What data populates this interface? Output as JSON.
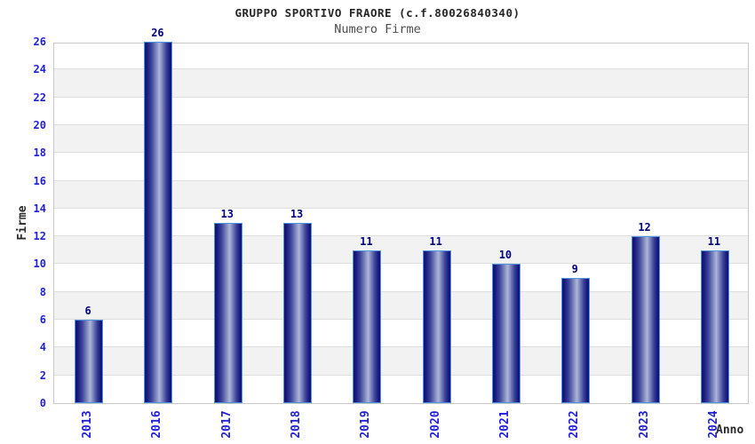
{
  "chart_data": {
    "type": "bar",
    "title": "GRUPPO SPORTIVO FRAORE (c.f.80026840340)",
    "subtitle": "Numero Firme",
    "xlabel": "Anno",
    "ylabel": "Firme",
    "categories": [
      "2013",
      "2016",
      "2017",
      "2018",
      "2019",
      "2020",
      "2021",
      "2022",
      "2023",
      "2024"
    ],
    "values": [
      6,
      26,
      13,
      13,
      11,
      11,
      10,
      9,
      12,
      11
    ],
    "ylim": [
      0,
      26
    ],
    "ytick_step": 2,
    "grid": "horizontal",
    "banded_background": true,
    "legend": "none",
    "bar_value_labels": [
      6,
      26,
      13,
      13,
      11,
      11,
      10,
      9,
      12,
      11
    ]
  },
  "colors": {
    "background": "#ffffff",
    "plot_border": "#c9c9c9",
    "band": "#f2f2f2",
    "gridline": "#dedede",
    "title": "#262626",
    "subtitle": "#4d4d4d",
    "tick_label": "#1f1fd9",
    "value_label": "#00007d",
    "axis_title": "#2b2b2b",
    "bar_dark": "#14147a",
    "bar_mid": "#3c4499",
    "bar_light": "#aeb6d8",
    "bar_border": "#4d94e0"
  }
}
